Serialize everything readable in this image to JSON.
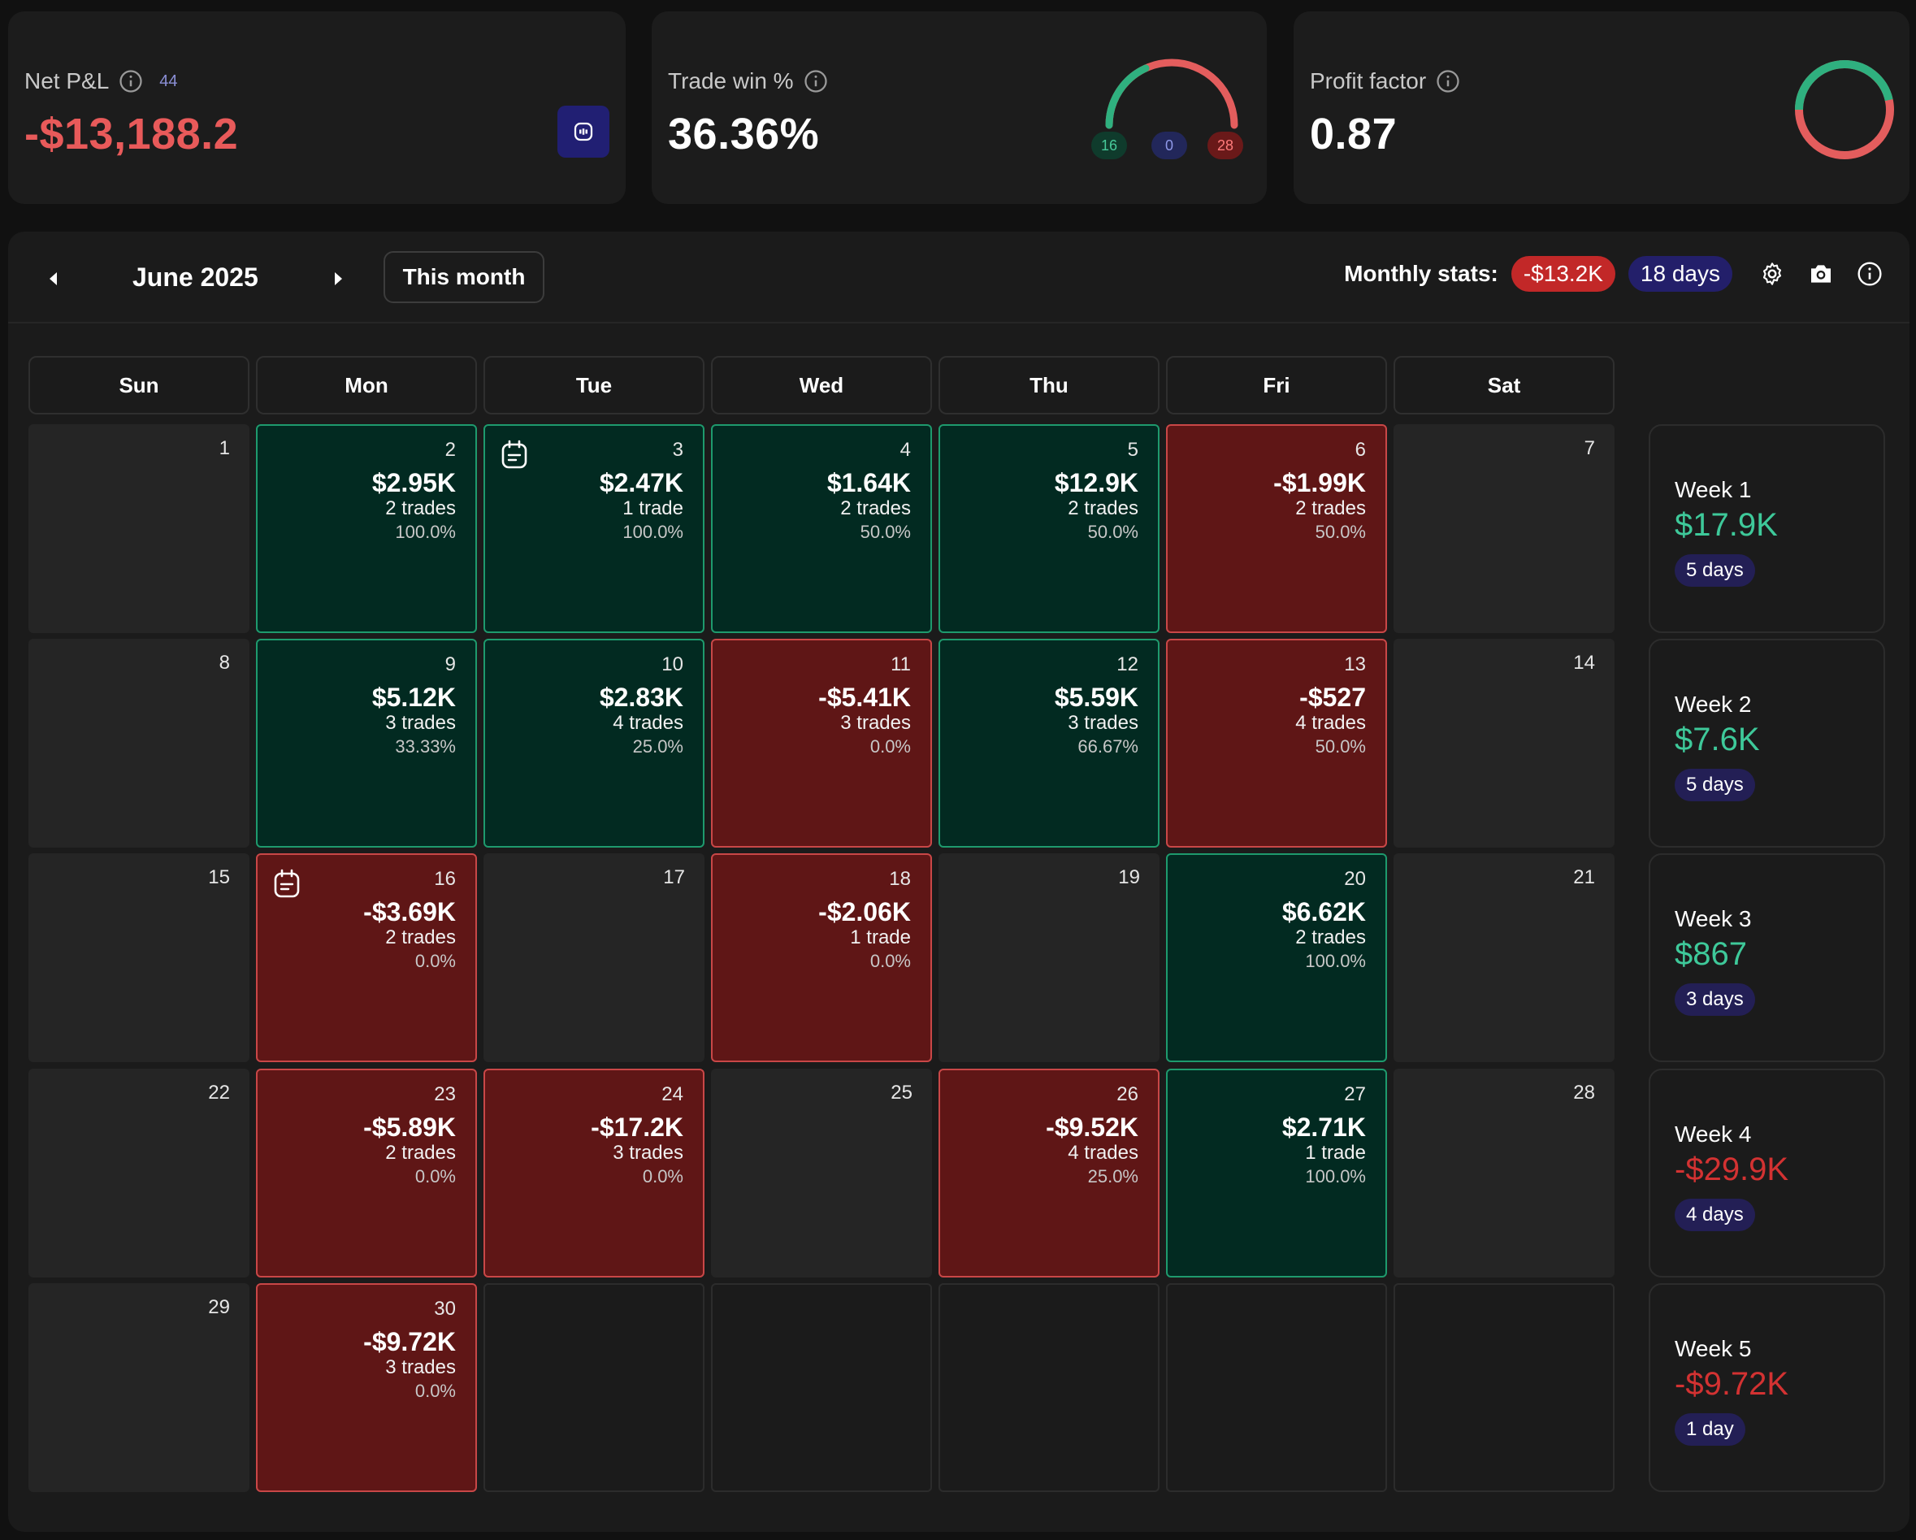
{
  "stats": {
    "net_pnl": {
      "label": "Net P&L",
      "count": "44",
      "value": "-$13,188.2",
      "value_color": "#e85a5a"
    },
    "trade_win": {
      "label": "Trade win %",
      "value": "36.36%",
      "wins": "16",
      "breakeven": "0",
      "losses": "28",
      "win_fraction": 0.3636
    },
    "profit_factor": {
      "label": "Profit factor",
      "value": "0.87",
      "ratio": 0.87
    }
  },
  "calendar": {
    "month_label": "June 2025",
    "this_month_label": "This month",
    "monthly_stats_label": "Monthly stats:",
    "monthly_pnl": "-$13.2K",
    "monthly_days": "18 days",
    "weekdays": [
      "Sun",
      "Mon",
      "Tue",
      "Wed",
      "Thu",
      "Fri",
      "Sat"
    ],
    "days": {
      "1": {
        "num": "1"
      },
      "2": {
        "num": "2",
        "pnl": "$2.95K",
        "trades": "2 trades",
        "pct": "100.0%"
      },
      "3": {
        "num": "3",
        "pnl": "$2.47K",
        "trades": "1 trade",
        "pct": "100.0%"
      },
      "4": {
        "num": "4",
        "pnl": "$1.64K",
        "trades": "2 trades",
        "pct": "50.0%"
      },
      "5": {
        "num": "5",
        "pnl": "$12.9K",
        "trades": "2 trades",
        "pct": "50.0%"
      },
      "6": {
        "num": "6",
        "pnl": "-$1.99K",
        "trades": "2 trades",
        "pct": "50.0%"
      },
      "7": {
        "num": "7"
      },
      "8": {
        "num": "8"
      },
      "9": {
        "num": "9",
        "pnl": "$5.12K",
        "trades": "3 trades",
        "pct": "33.33%"
      },
      "10": {
        "num": "10",
        "pnl": "$2.83K",
        "trades": "4 trades",
        "pct": "25.0%"
      },
      "11": {
        "num": "11",
        "pnl": "-$5.41K",
        "trades": "3 trades",
        "pct": "0.0%"
      },
      "12": {
        "num": "12",
        "pnl": "$5.59K",
        "trades": "3 trades",
        "pct": "66.67%"
      },
      "13": {
        "num": "13",
        "pnl": "-$527",
        "trades": "4 trades",
        "pct": "50.0%"
      },
      "14": {
        "num": "14"
      },
      "15": {
        "num": "15"
      },
      "16": {
        "num": "16",
        "pnl": "-$3.69K",
        "trades": "2 trades",
        "pct": "0.0%"
      },
      "17": {
        "num": "17"
      },
      "18": {
        "num": "18",
        "pnl": "-$2.06K",
        "trades": "1 trade",
        "pct": "0.0%"
      },
      "19": {
        "num": "19"
      },
      "20": {
        "num": "20",
        "pnl": "$6.62K",
        "trades": "2 trades",
        "pct": "100.0%"
      },
      "21": {
        "num": "21"
      },
      "22": {
        "num": "22"
      },
      "23": {
        "num": "23",
        "pnl": "-$5.89K",
        "trades": "2 trades",
        "pct": "0.0%"
      },
      "24": {
        "num": "24",
        "pnl": "-$17.2K",
        "trades": "3 trades",
        "pct": "0.0%"
      },
      "25": {
        "num": "25"
      },
      "26": {
        "num": "26",
        "pnl": "-$9.52K",
        "trades": "4 trades",
        "pct": "25.0%"
      },
      "27": {
        "num": "27",
        "pnl": "$2.71K",
        "trades": "1 trade",
        "pct": "100.0%"
      },
      "28": {
        "num": "28"
      },
      "29": {
        "num": "29"
      },
      "30": {
        "num": "30",
        "pnl": "-$9.72K",
        "trades": "3 trades",
        "pct": "0.0%"
      }
    },
    "weeks": [
      {
        "label": "Week 1",
        "value": "$17.9K",
        "days": "5 days"
      },
      {
        "label": "Week 2",
        "value": "$7.6K",
        "days": "5 days"
      },
      {
        "label": "Week 3",
        "value": "$867",
        "days": "3 days"
      },
      {
        "label": "Week 4",
        "value": "-$29.9K",
        "days": "4 days"
      },
      {
        "label": "Week 5",
        "value": "-$9.72K",
        "days": "1 day"
      }
    ]
  },
  "colors": {
    "win_bg": "#022a21",
    "loss_bg": "#5f1616",
    "win_text": "#3ec99a",
    "loss_text": "#d33232"
  },
  "icons": [
    "info-icon",
    "bot-icon",
    "chevron-left-icon",
    "chevron-right-icon",
    "gear-icon",
    "camera-icon",
    "note-icon"
  ]
}
